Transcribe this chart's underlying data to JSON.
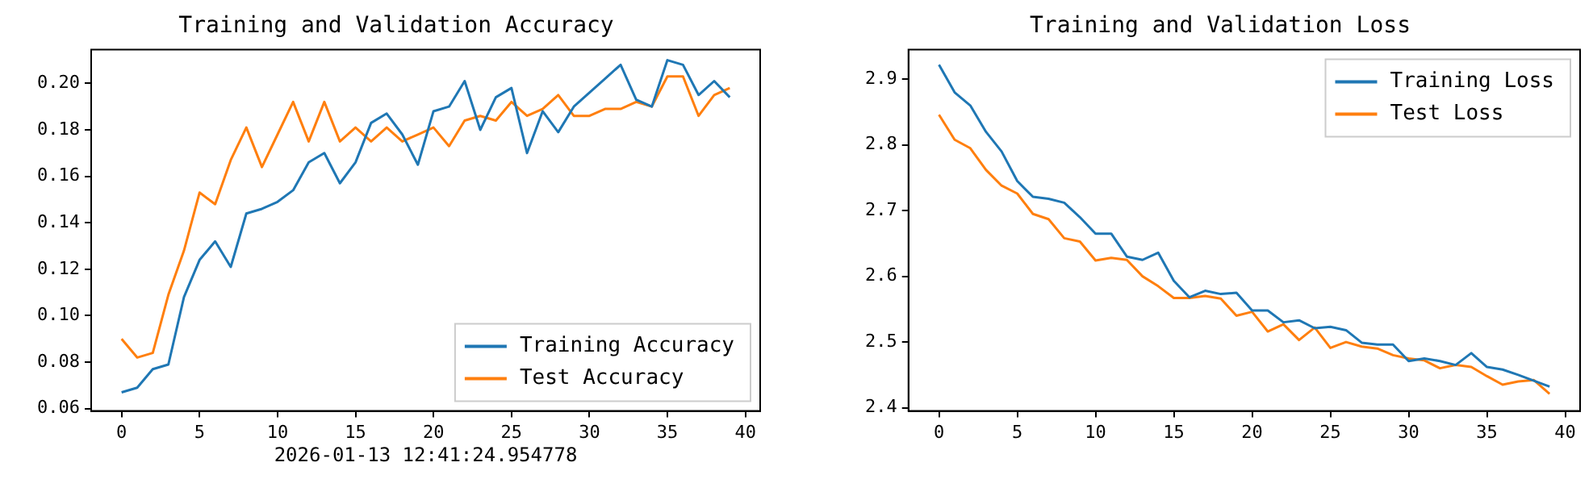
{
  "chart_data": [
    {
      "type": "line",
      "title": "Training and Validation Accuracy",
      "x": [
        0,
        1,
        2,
        3,
        4,
        5,
        6,
        7,
        8,
        9,
        10,
        11,
        12,
        13,
        14,
        15,
        16,
        17,
        18,
        19,
        20,
        21,
        22,
        23,
        24,
        25,
        26,
        27,
        28,
        29,
        30,
        31,
        32,
        33,
        34,
        35,
        36,
        37,
        38,
        39
      ],
      "series": [
        {
          "name": "Training Accuracy",
          "color": "#1f77b4",
          "values": [
            0.067,
            0.069,
            0.077,
            0.079,
            0.108,
            0.124,
            0.132,
            0.121,
            0.144,
            0.146,
            0.149,
            0.154,
            0.166,
            0.17,
            0.157,
            0.166,
            0.183,
            0.187,
            0.178,
            0.165,
            0.188,
            0.19,
            0.201,
            0.18,
            0.194,
            0.198,
            0.17,
            0.188,
            0.179,
            0.19,
            0.196,
            0.202,
            0.208,
            0.193,
            0.19,
            0.21,
            0.208,
            0.195,
            0.201,
            0.194
          ]
        },
        {
          "name": "Test Accuracy",
          "color": "#ff7f0e",
          "values": [
            0.09,
            0.082,
            0.084,
            0.109,
            0.128,
            0.153,
            0.148,
            0.167,
            0.181,
            0.164,
            0.178,
            0.192,
            0.175,
            0.192,
            0.175,
            0.181,
            0.175,
            0.181,
            0.175,
            0.178,
            0.181,
            0.173,
            0.184,
            0.186,
            0.184,
            0.192,
            0.186,
            0.189,
            0.195,
            0.186,
            0.186,
            0.189,
            0.189,
            0.192,
            0.19,
            0.203,
            0.203,
            0.186,
            0.195,
            0.198
          ]
        }
      ],
      "xlim": [
        -1.95,
        40.95
      ],
      "xticks": [
        0,
        5,
        10,
        15,
        20,
        25,
        30,
        35,
        40
      ],
      "ylim": [
        0.059,
        0.2145
      ],
      "yticks": [
        {
          "value": 0.06,
          "label": "0.06"
        },
        {
          "value": 0.08,
          "label": "0.08"
        },
        {
          "value": 0.1,
          "label": "0.10"
        },
        {
          "value": 0.12,
          "label": "0.12"
        },
        {
          "value": 0.14,
          "label": "0.14"
        },
        {
          "value": 0.16,
          "label": "0.16"
        },
        {
          "value": 0.18,
          "label": "0.18"
        },
        {
          "value": 0.2,
          "label": "0.20"
        }
      ],
      "legend": "bottom right",
      "grid": false,
      "annotations": [
        "2026-01-13 12:41:24.954778"
      ]
    },
    {
      "type": "line",
      "title": "Training and Validation Loss",
      "x": [
        0,
        1,
        2,
        3,
        4,
        5,
        6,
        7,
        8,
        9,
        10,
        11,
        12,
        13,
        14,
        15,
        16,
        17,
        18,
        19,
        20,
        21,
        22,
        23,
        24,
        25,
        26,
        27,
        28,
        29,
        30,
        31,
        32,
        33,
        34,
        35,
        36,
        37,
        38,
        39
      ],
      "series": [
        {
          "name": "Training Loss",
          "color": "#1f77b4",
          "values": [
            2.922,
            2.88,
            2.86,
            2.82,
            2.79,
            2.745,
            2.721,
            2.718,
            2.712,
            2.69,
            2.665,
            2.665,
            2.63,
            2.625,
            2.636,
            2.593,
            2.568,
            2.578,
            2.573,
            2.575,
            2.548,
            2.548,
            2.53,
            2.533,
            2.521,
            2.523,
            2.518,
            2.499,
            2.496,
            2.496,
            2.471,
            2.475,
            2.471,
            2.465,
            2.483,
            2.462,
            2.458,
            2.45,
            2.441,
            2.432
          ]
        },
        {
          "name": "Test Loss",
          "color": "#ff7f0e",
          "values": [
            2.846,
            2.808,
            2.795,
            2.762,
            2.738,
            2.726,
            2.695,
            2.687,
            2.658,
            2.653,
            2.624,
            2.628,
            2.625,
            2.6,
            2.585,
            2.567,
            2.567,
            2.57,
            2.566,
            2.54,
            2.546,
            2.516,
            2.527,
            2.503,
            2.522,
            2.491,
            2.5,
            2.493,
            2.49,
            2.48,
            2.475,
            2.472,
            2.46,
            2.465,
            2.462,
            2.448,
            2.435,
            2.44,
            2.442,
            2.421
          ]
        }
      ],
      "xlim": [
        -1.95,
        40.95
      ],
      "xticks": [
        0,
        5,
        10,
        15,
        20,
        25,
        30,
        35,
        40
      ],
      "ylim": [
        2.395,
        2.945
      ],
      "yticks": [
        {
          "value": 2.4,
          "label": "2.4"
        },
        {
          "value": 2.5,
          "label": "2.5"
        },
        {
          "value": 2.6,
          "label": "2.6"
        },
        {
          "value": 2.7,
          "label": "2.7"
        },
        {
          "value": 2.8,
          "label": "2.8"
        },
        {
          "value": 2.9,
          "label": "2.9"
        }
      ],
      "legend": "top right",
      "grid": false
    }
  ]
}
